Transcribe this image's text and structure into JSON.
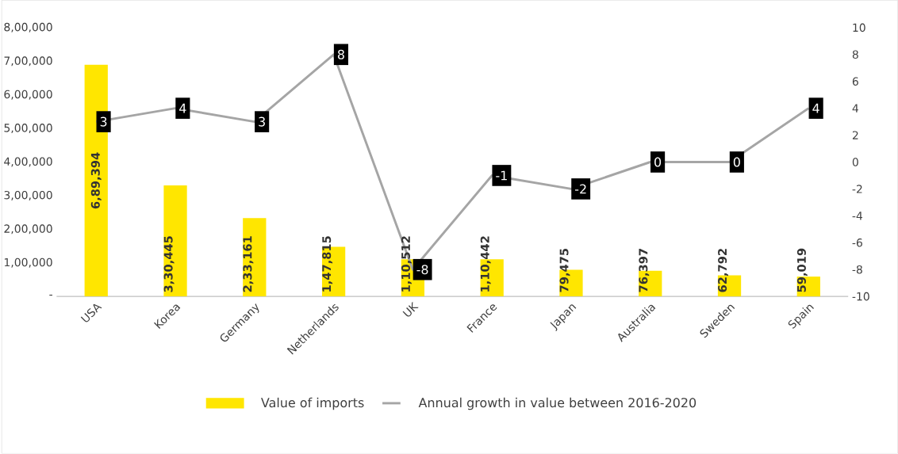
{
  "chart_data": {
    "type": "bar",
    "categories": [
      "USA",
      "Korea",
      "Germany",
      "Netherlands",
      "UK",
      "France",
      "Japan",
      "Australia",
      "Sweden",
      "Spain"
    ],
    "series": [
      {
        "name": "Value of imports",
        "color": "#ffe600",
        "values": [
          689394,
          330445,
          233161,
          147815,
          110512,
          110442,
          79475,
          76397,
          62792,
          59019
        ],
        "value_labels": [
          "6,89,394",
          "3,30,445",
          "2,33,161",
          "1,47,815",
          "1,10,512",
          "1,10,442",
          "79,475",
          "76,397",
          "62,792",
          "59,019"
        ]
      },
      {
        "name": "Annual growth in value between 2016-2020",
        "type": "line",
        "axis": "y2",
        "color": "#a5a5a5",
        "values": [
          3,
          4,
          3,
          8,
          -8,
          -1,
          -2,
          0,
          0,
          4
        ],
        "value_labels": [
          "3",
          "4",
          "3",
          "8",
          "-8",
          "-1",
          "-2",
          "0",
          "0",
          "4"
        ]
      }
    ],
    "ylim": [
      0,
      800000
    ],
    "yticks": [
      {
        "value": 0,
        "label": "-"
      },
      {
        "value": 100000,
        "label": "1,00,000"
      },
      {
        "value": 200000,
        "label": "2,00,000"
      },
      {
        "value": 300000,
        "label": "3,00,000"
      },
      {
        "value": 400000,
        "label": "4,00,000"
      },
      {
        "value": 500000,
        "label": "5,00,000"
      },
      {
        "value": 600000,
        "label": "6,00,000"
      },
      {
        "value": 700000,
        "label": "7,00,000"
      },
      {
        "value": 800000,
        "label": "8,00,000"
      }
    ],
    "y2lim": [
      -10,
      10
    ],
    "y2ticks": [
      -10,
      -8,
      -6,
      -4,
      -2,
      0,
      2,
      4,
      6,
      8,
      10
    ],
    "legend": "bottom"
  }
}
